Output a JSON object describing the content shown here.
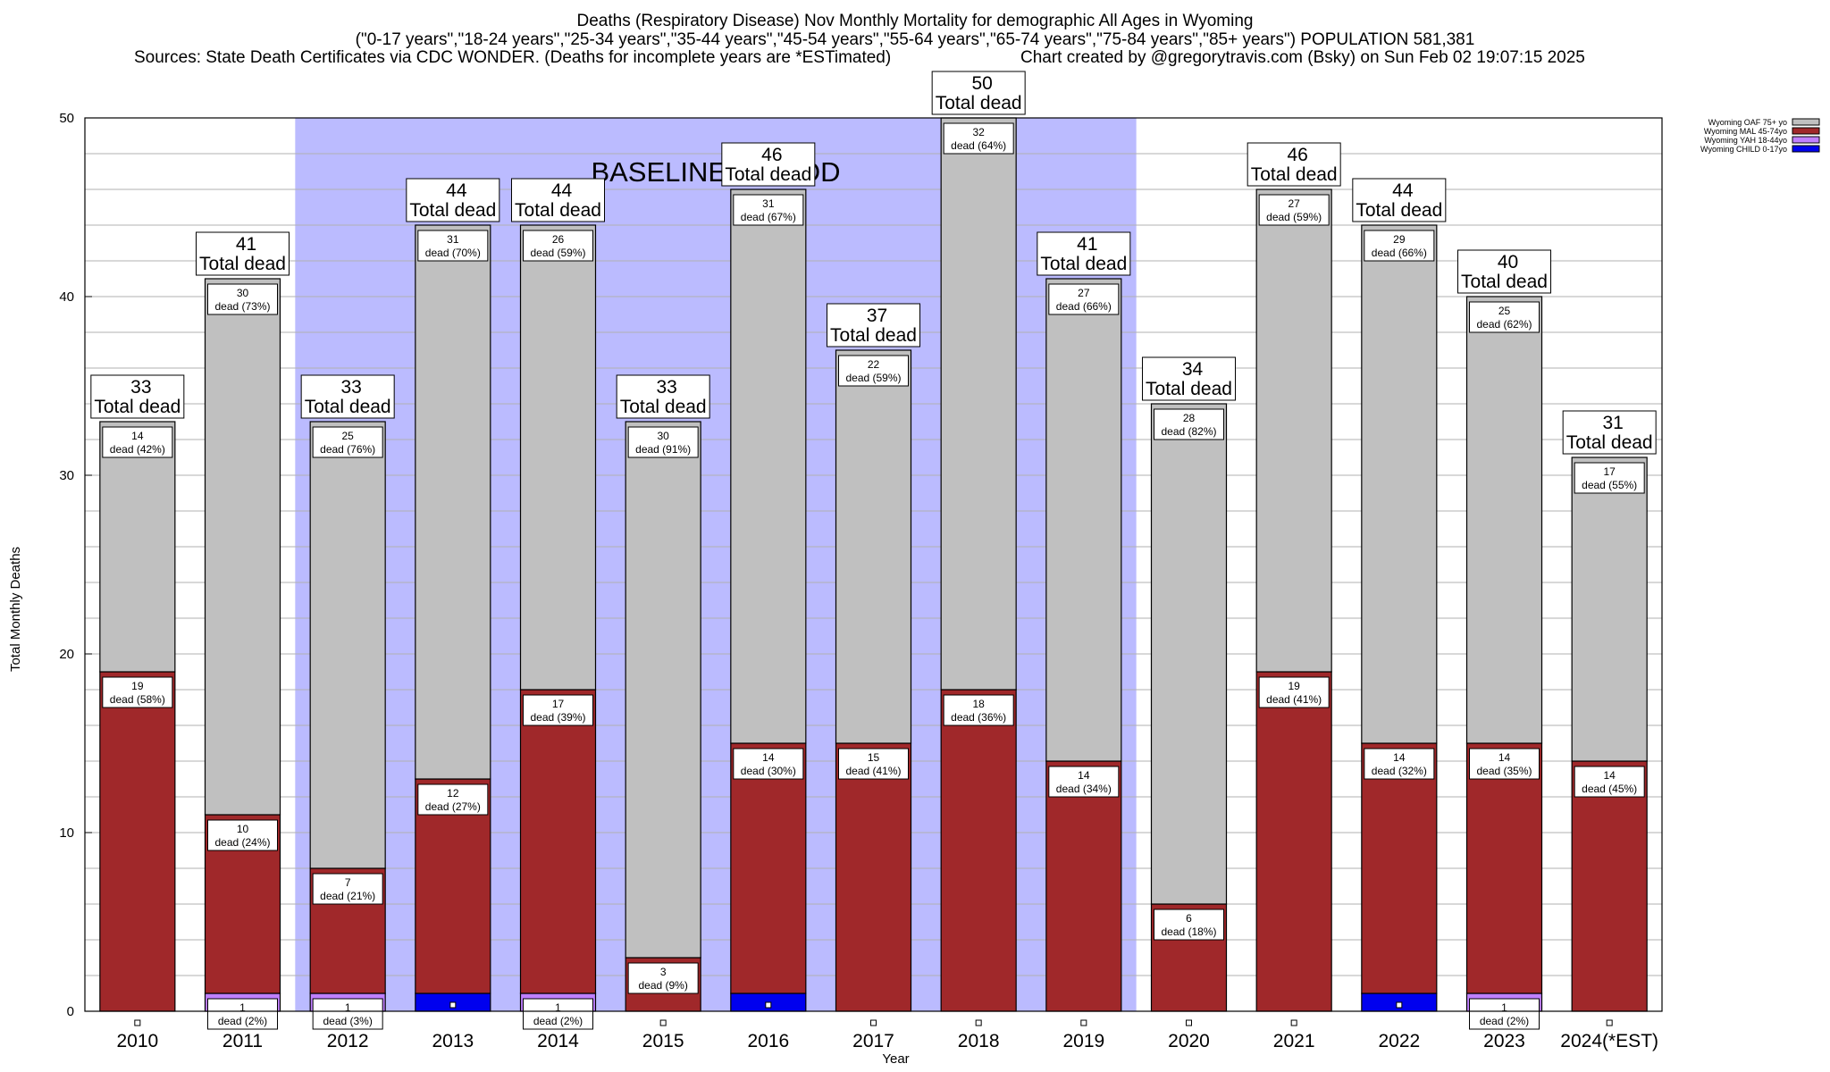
{
  "header": {
    "line1": "Deaths (Respiratory Disease) Nov Monthly Mortality for demographic All Ages in Wyoming",
    "line2": "(\"0-17 years\",\"18-24 years\",\"25-34 years\",\"35-44 years\",\"45-54 years\",\"55-64 years\",\"65-74 years\",\"75-84 years\",\"85+ years\") POPULATION 581,381",
    "line3_left": "Sources: State Death Certificates via CDC WONDER. (Deaths for incomplete years are *ESTimated)",
    "line3_right": "Chart created by @gregorytravis.com (Bsky) on Sun Feb 02 19:07:15 2025"
  },
  "chart_data": {
    "type": "bar",
    "stacked": true,
    "categories": [
      "2010",
      "2011",
      "2012",
      "2013",
      "2014",
      "2015",
      "2016",
      "2017",
      "2018",
      "2019",
      "2020",
      "2021",
      "2022",
      "2023",
      "2024(*EST)"
    ],
    "series": [
      {
        "name": "Wyoming CHILD 0-17yo",
        "color": "#0000ee",
        "values": [
          0,
          0,
          0,
          1,
          0,
          0,
          1,
          0,
          0,
          0,
          0,
          0,
          1,
          0,
          0
        ]
      },
      {
        "name": "Wyoming YAH 18-44yo",
        "color": "#c080ff",
        "values": [
          0,
          1,
          1,
          0,
          1,
          0,
          0,
          0,
          0,
          0,
          0,
          0,
          0,
          1,
          0
        ]
      },
      {
        "name": "Wyoming MAL 45-74yo",
        "color": "#a0282a",
        "values": [
          19,
          10,
          7,
          12,
          17,
          3,
          14,
          15,
          18,
          14,
          6,
          19,
          14,
          14,
          14
        ]
      },
      {
        "name": "Wyoming OAF 75+ yo",
        "color": "#c0c0c0",
        "values": [
          14,
          30,
          25,
          31,
          26,
          30,
          31,
          22,
          32,
          27,
          28,
          27,
          29,
          25,
          17
        ]
      }
    ],
    "totals": [
      33,
      41,
      33,
      44,
      44,
      33,
      46,
      37,
      50,
      41,
      34,
      46,
      44,
      40,
      31
    ],
    "segment_labels": {
      "Wyoming OAF 75+ yo": [
        "14",
        "30",
        "25",
        "31",
        "26",
        "30",
        "31",
        "22",
        "32",
        "27",
        "28",
        "27",
        "29",
        "25",
        "17"
      ],
      "Wyoming OAF 75+ yo pct": [
        "dead (42%)",
        "dead (73%)",
        "dead (76%)",
        "dead (70%)",
        "dead (59%)",
        "dead (91%)",
        "dead (67%)",
        "dead (59%)",
        "dead (64%)",
        "dead (66%)",
        "dead (82%)",
        "dead (59%)",
        "dead (66%)",
        "dead (62%)",
        "dead (55%)"
      ],
      "Wyoming MAL 45-74yo": [
        "19",
        "10",
        "7",
        "12",
        "17",
        "3",
        "14",
        "15",
        "18",
        "14",
        "6",
        "19",
        "14",
        "14",
        "14"
      ],
      "Wyoming MAL 45-74yo pct": [
        "dead (58%)",
        "dead (24%)",
        "dead (21%)",
        "dead (27%)",
        "dead (39%)",
        "dead (9%)",
        "dead (30%)",
        "dead (41%)",
        "dead (36%)",
        "dead (34%)",
        "dead (18%)",
        "dead (41%)",
        "dead (32%)",
        "dead (35%)",
        "dead (45%)"
      ],
      "Wyoming YAH 18-44yo": [
        "",
        "1",
        "1",
        "",
        "1",
        "",
        "",
        "",
        "",
        "",
        "",
        "",
        "",
        "1",
        ""
      ],
      "Wyoming YAH 18-44yo pct": [
        "",
        "dead (2%)",
        "dead (3%)",
        "",
        "dead (2%)",
        "",
        "",
        "",
        "",
        "",
        "",
        "",
        "",
        "dead (2%)",
        ""
      ]
    },
    "total_label": "Total dead",
    "xlabel": "Year",
    "ylabel": "Total Monthly Deaths",
    "ylim": [
      0,
      50
    ],
    "yticks": [
      "0",
      "10",
      "20",
      "30",
      "40",
      "50"
    ],
    "grid": true,
    "baseline": {
      "label": "BASELINE PERIOD",
      "from": "2012",
      "to": "2019",
      "color": "#bbbbff"
    },
    "legend_position": "top-right"
  }
}
